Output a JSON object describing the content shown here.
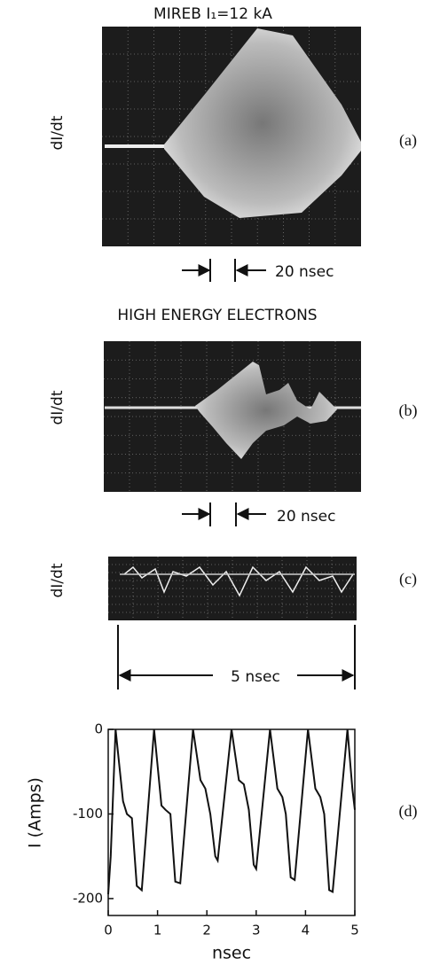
{
  "figure": {
    "panel_a": {
      "title": "MIREB  I₁=12 kA",
      "ylabel": "dI/dt",
      "label": "(a)",
      "scale": "20 nsec"
    },
    "panel_b": {
      "title": "HIGH ENERGY ELECTRONS",
      "ylabel": "dI/dt",
      "label": "(b)",
      "scale": "20 nsec"
    },
    "panel_c": {
      "ylabel": "dI/dt",
      "label": "(c)",
      "scale": "5 nsec"
    },
    "panel_d": {
      "label": "(d)"
    }
  },
  "chart_data": {
    "type": "line",
    "color": "#111111",
    "xlabel": "nsec",
    "ylabel": "I (Amps)",
    "x": [
      0,
      0.05,
      0.15,
      0.3,
      0.38,
      0.48,
      0.58,
      0.68,
      0.93,
      1.08,
      1.16,
      1.26,
      1.36,
      1.46,
      1.72,
      1.87,
      1.97,
      2.07,
      2.17,
      2.22,
      2.5,
      2.65,
      2.75,
      2.85,
      2.95,
      3.0,
      3.28,
      3.43,
      3.53,
      3.6,
      3.7,
      3.78,
      4.05,
      4.2,
      4.3,
      4.38,
      4.48,
      4.55,
      4.85,
      4.95,
      5.0
    ],
    "values": [
      -195,
      -150,
      0,
      -85,
      -100,
      -105,
      -185,
      -190,
      0,
      -90,
      -95,
      -100,
      -180,
      -182,
      0,
      -60,
      -70,
      -100,
      -150,
      -155,
      0,
      -60,
      -65,
      -95,
      -160,
      -165,
      0,
      -70,
      -80,
      -100,
      -175,
      -178,
      0,
      -70,
      -80,
      -100,
      -190,
      -192,
      0,
      -70,
      -95
    ],
    "xlim": [
      0,
      5
    ],
    "ylim": [
      -220,
      0
    ],
    "xticks": [
      0,
      1,
      2,
      3,
      4,
      5
    ],
    "yticks": [
      0,
      -100,
      -200
    ]
  }
}
